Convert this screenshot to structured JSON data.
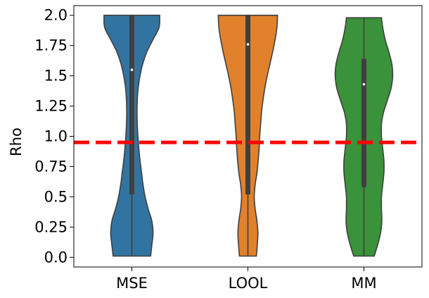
{
  "chart_data": {
    "type": "violin",
    "title": "",
    "xlabel": "",
    "ylabel": "Rho",
    "ylim": [
      -0.08,
      2.08
    ],
    "yticks": [
      0.0,
      0.25,
      0.5,
      0.75,
      1.0,
      1.25,
      1.5,
      1.75,
      2.0
    ],
    "ytick_labels": [
      "0.0",
      "0.25",
      "0.5",
      "0.75",
      "1.0",
      "1.25",
      "1.5",
      "1.75",
      "2.0"
    ],
    "grid": false,
    "legend": "none",
    "reference_line": {
      "y": 0.95,
      "color": "#ff0000",
      "style": "dashed"
    },
    "categories": [
      "MSE",
      "LOOL",
      "MM"
    ],
    "series": [
      {
        "category": "MSE",
        "color": "#3274a1",
        "min": 0.01,
        "q1": 0.52,
        "median": 1.55,
        "q3": 2.0,
        "max": 2.0,
        "density_y": [
          0.01,
          0.1,
          0.2,
          0.3,
          0.4,
          0.5,
          0.6,
          0.7,
          0.8,
          0.9,
          1.0,
          1.1,
          1.2,
          1.3,
          1.4,
          1.5,
          1.6,
          1.7,
          1.8,
          1.9,
          2.0
        ],
        "density_w": [
          0.62,
          0.66,
          0.7,
          0.66,
          0.54,
          0.44,
          0.37,
          0.32,
          0.27,
          0.23,
          0.2,
          0.18,
          0.17,
          0.18,
          0.21,
          0.27,
          0.36,
          0.5,
          0.7,
          0.9,
          0.92
        ]
      },
      {
        "category": "LOOL",
        "color": "#e1812c",
        "min": 0.01,
        "q1": 0.52,
        "median": 1.76,
        "q3": 2.0,
        "max": 2.0,
        "density_y": [
          0.01,
          0.1,
          0.2,
          0.3,
          0.4,
          0.5,
          0.6,
          0.7,
          0.8,
          0.9,
          1.0,
          1.1,
          1.2,
          1.3,
          1.4,
          1.5,
          1.6,
          1.7,
          1.8,
          1.9,
          2.0
        ],
        "density_w": [
          0.28,
          0.31,
          0.33,
          0.3,
          0.24,
          0.21,
          0.24,
          0.3,
          0.34,
          0.37,
          0.39,
          0.42,
          0.45,
          0.5,
          0.56,
          0.64,
          0.73,
          0.82,
          0.9,
          0.96,
          0.98
        ]
      },
      {
        "category": "MM",
        "color": "#3a923a",
        "min": 0.01,
        "q1": 0.58,
        "median": 1.43,
        "q3": 1.64,
        "max": 1.98,
        "density_y": [
          0.01,
          0.1,
          0.2,
          0.3,
          0.4,
          0.5,
          0.6,
          0.7,
          0.8,
          0.9,
          1.0,
          1.1,
          1.2,
          1.3,
          1.4,
          1.5,
          1.6,
          1.7,
          1.8,
          1.9,
          1.98
        ],
        "density_w": [
          0.34,
          0.45,
          0.55,
          0.59,
          0.58,
          0.58,
          0.62,
          0.66,
          0.66,
          0.62,
          0.58,
          0.58,
          0.65,
          0.78,
          0.9,
          0.95,
          0.92,
          0.82,
          0.7,
          0.62,
          0.58
        ]
      }
    ]
  }
}
